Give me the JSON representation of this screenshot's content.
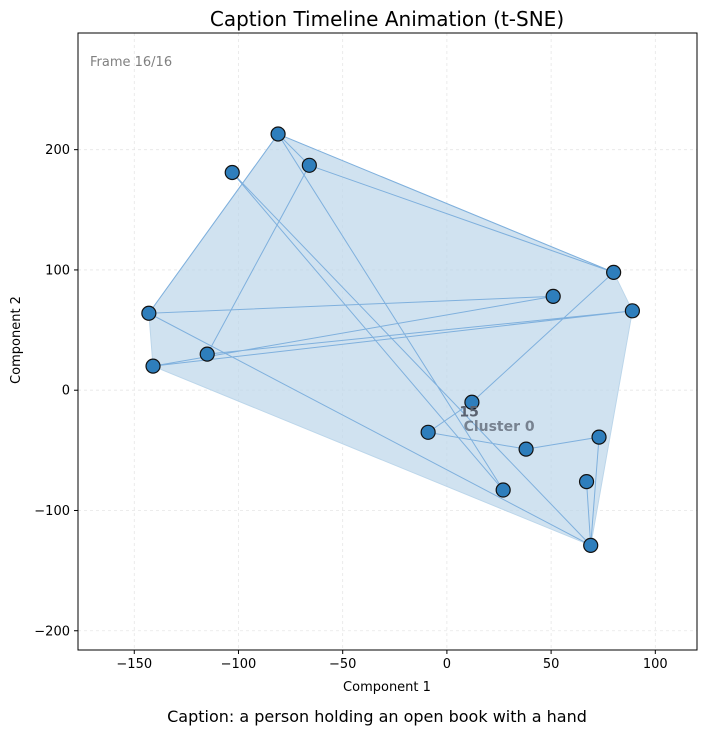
{
  "chart_data": {
    "type": "scatter",
    "title": "Caption Timeline Animation (t-SNE)",
    "xlabel": "Component 1",
    "ylabel": "Component 2",
    "xlim": [
      -177,
      120
    ],
    "ylim": [
      -216,
      297
    ],
    "xticks": [
      -150,
      -100,
      -50,
      0,
      50,
      100
    ],
    "yticks": [
      -200,
      -100,
      0,
      100,
      200
    ],
    "xtick_labels": [
      "−150",
      "−100",
      "−50",
      "0",
      "50",
      "100"
    ],
    "ytick_labels": [
      "−200",
      "−100",
      "0",
      "100",
      "200"
    ],
    "grid": true,
    "frame_label": "Frame 16/16",
    "points": [
      {
        "x": -81,
        "y": 213
      },
      {
        "x": -103,
        "y": 181
      },
      {
        "x": -66,
        "y": 187
      },
      {
        "x": 80,
        "y": 98
      },
      {
        "x": 51,
        "y": 78
      },
      {
        "x": 89,
        "y": 66
      },
      {
        "x": -143,
        "y": 64
      },
      {
        "x": -115,
        "y": 30
      },
      {
        "x": -141,
        "y": 20
      },
      {
        "x": 12,
        "y": -10
      },
      {
        "x": -9,
        "y": -35
      },
      {
        "x": 38,
        "y": -49
      },
      {
        "x": 73,
        "y": -39
      },
      {
        "x": 67,
        "y": -76
      },
      {
        "x": 27,
        "y": -83
      },
      {
        "x": 69,
        "y": -129
      }
    ],
    "path_order": [
      6,
      0,
      2,
      7,
      5,
      8,
      4,
      6,
      15,
      1,
      14,
      0,
      3,
      2,
      3,
      9,
      10,
      11,
      12,
      15,
      13
    ],
    "hull": [
      0,
      3,
      5,
      15,
      8,
      6
    ],
    "annotations": [
      {
        "text": "15",
        "x": 6,
        "y": -22
      },
      {
        "text": "Cluster 0",
        "x": 8,
        "y": -34
      }
    ],
    "caption": "Caption: a person holding an open book with a hand",
    "colors": {
      "point_fill": "#2e7ebc",
      "point_edge": "#111111",
      "hull_fill": "#bcd6ea",
      "line": "#7fb0dd",
      "grid": "#e6e6e6",
      "frame_label": "#808080",
      "annotation": "#5a6270"
    }
  }
}
